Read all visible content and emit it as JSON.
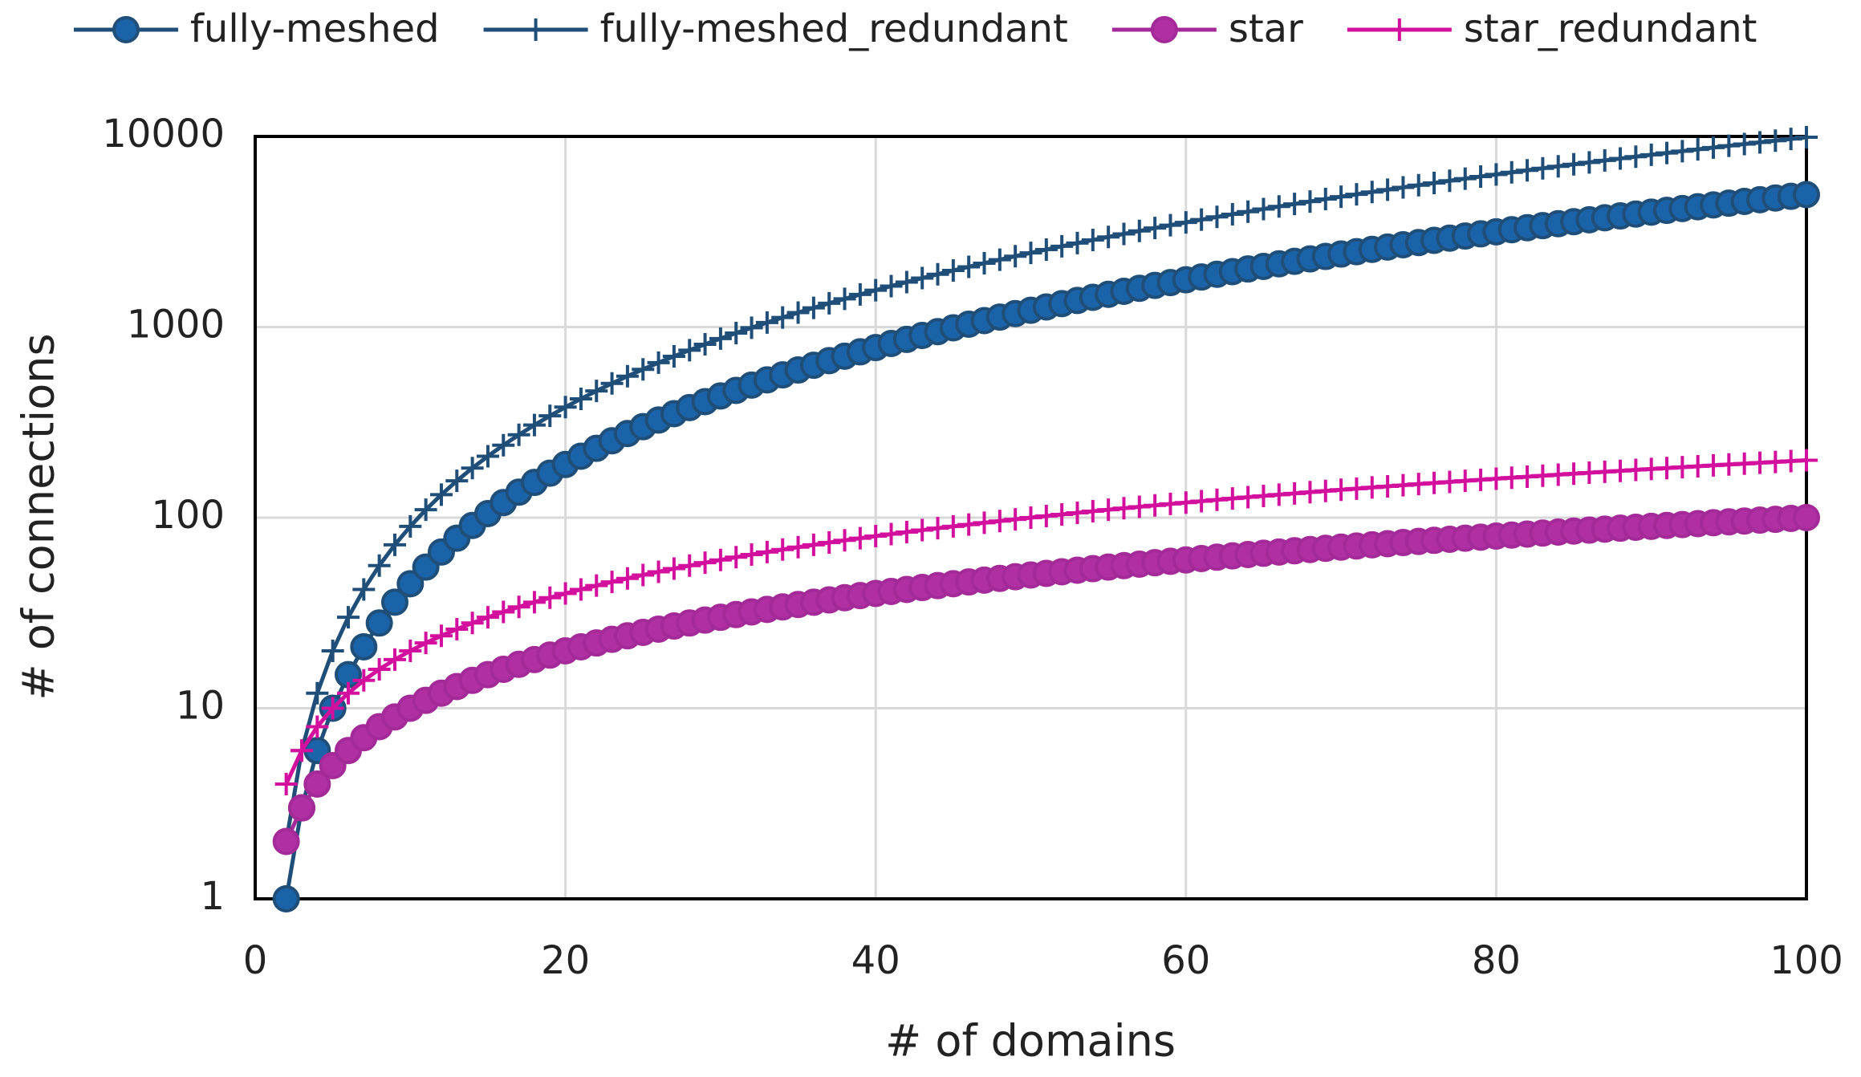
{
  "chart_data": {
    "type": "line",
    "x_label": "# of domains",
    "y_label": "# of connections",
    "xlim": [
      0,
      100
    ],
    "xticks": [
      0,
      20,
      40,
      60,
      80,
      100
    ],
    "ylim": [
      1,
      10000
    ],
    "yticks": [
      1,
      10,
      100,
      1000,
      10000
    ],
    "y_scale": "log",
    "grid": true,
    "legend": "top",
    "x": [
      2,
      3,
      4,
      5,
      6,
      7,
      8,
      9,
      10,
      11,
      12,
      13,
      14,
      15,
      16,
      17,
      18,
      19,
      20,
      21,
      22,
      23,
      24,
      25,
      26,
      27,
      28,
      29,
      30,
      31,
      32,
      33,
      34,
      35,
      36,
      37,
      38,
      39,
      40,
      41,
      42,
      43,
      44,
      45,
      46,
      47,
      48,
      49,
      50,
      51,
      52,
      53,
      54,
      55,
      56,
      57,
      58,
      59,
      60,
      61,
      62,
      63,
      64,
      65,
      66,
      67,
      68,
      69,
      70,
      71,
      72,
      73,
      74,
      75,
      76,
      77,
      78,
      79,
      80,
      81,
      82,
      83,
      84,
      85,
      86,
      87,
      88,
      89,
      90,
      91,
      92,
      93,
      94,
      95,
      96,
      97,
      98,
      99,
      100
    ],
    "series": [
      {
        "name": "fully-meshed",
        "color": "#1f4e79",
        "marker": "circle",
        "marker_fill": "#1b63a8",
        "values": [
          1,
          3,
          6,
          10,
          15,
          21,
          28,
          36,
          45,
          55,
          66,
          78,
          91,
          105,
          120,
          136,
          153,
          171,
          190,
          210,
          231,
          253,
          276,
          300,
          325,
          351,
          378,
          406,
          435,
          465,
          496,
          528,
          561,
          595,
          630,
          666,
          703,
          741,
          780,
          820,
          861,
          903,
          946,
          990,
          1035,
          1081,
          1128,
          1176,
          1225,
          1275,
          1326,
          1378,
          1431,
          1485,
          1540,
          1596,
          1653,
          1711,
          1770,
          1830,
          1891,
          1953,
          2016,
          2080,
          2145,
          2211,
          2278,
          2346,
          2415,
          2485,
          2556,
          2628,
          2701,
          2775,
          2850,
          2926,
          3003,
          3081,
          3160,
          3240,
          3321,
          3403,
          3486,
          3570,
          3655,
          3741,
          3828,
          3916,
          4005,
          4095,
          4186,
          4278,
          4371,
          4465,
          4560,
          4656,
          4753,
          4851,
          4950
        ]
      },
      {
        "name": "fully-meshed_redundant",
        "color": "#1f4e79",
        "marker": "plus",
        "values": [
          2,
          6,
          12,
          20,
          30,
          42,
          56,
          72,
          90,
          110,
          132,
          156,
          182,
          210,
          240,
          272,
          306,
          342,
          380,
          420,
          462,
          506,
          552,
          600,
          650,
          702,
          756,
          812,
          870,
          930,
          992,
          1056,
          1122,
          1190,
          1260,
          1332,
          1406,
          1482,
          1560,
          1640,
          1722,
          1806,
          1892,
          1980,
          2070,
          2162,
          2256,
          2352,
          2450,
          2550,
          2652,
          2756,
          2862,
          2970,
          3080,
          3192,
          3306,
          3422,
          3540,
          3660,
          3782,
          3906,
          4032,
          4160,
          4290,
          4422,
          4556,
          4692,
          4830,
          4970,
          5112,
          5256,
          5402,
          5550,
          5700,
          5852,
          6006,
          6162,
          6320,
          6480,
          6642,
          6806,
          6972,
          7140,
          7310,
          7482,
          7656,
          7832,
          8010,
          8190,
          8372,
          8556,
          8742,
          8930,
          9120,
          9312,
          9506,
          9702,
          9900
        ]
      },
      {
        "name": "star",
        "color": "#a32a98",
        "marker": "circle",
        "marker_fill": "#b02fa3",
        "values": [
          2,
          3,
          4,
          5,
          6,
          7,
          8,
          9,
          10,
          11,
          12,
          13,
          14,
          15,
          16,
          17,
          18,
          19,
          20,
          21,
          22,
          23,
          24,
          25,
          26,
          27,
          28,
          29,
          30,
          31,
          32,
          33,
          34,
          35,
          36,
          37,
          38,
          39,
          40,
          41,
          42,
          43,
          44,
          45,
          46,
          47,
          48,
          49,
          50,
          51,
          52,
          53,
          54,
          55,
          56,
          57,
          58,
          59,
          60,
          61,
          62,
          63,
          64,
          65,
          66,
          67,
          68,
          69,
          70,
          71,
          72,
          73,
          74,
          75,
          76,
          77,
          78,
          79,
          80,
          81,
          82,
          83,
          84,
          85,
          86,
          87,
          88,
          89,
          90,
          91,
          92,
          93,
          94,
          95,
          96,
          97,
          98,
          99,
          100
        ]
      },
      {
        "name": "star_redundant",
        "color": "#d3109e",
        "marker": "plus",
        "values": [
          4,
          6,
          8,
          10,
          12,
          14,
          16,
          18,
          20,
          22,
          24,
          26,
          28,
          30,
          32,
          34,
          36,
          38,
          40,
          42,
          44,
          46,
          48,
          50,
          52,
          54,
          56,
          58,
          60,
          62,
          64,
          66,
          68,
          70,
          72,
          74,
          76,
          78,
          80,
          82,
          84,
          86,
          88,
          90,
          92,
          94,
          96,
          98,
          100,
          102,
          104,
          106,
          108,
          110,
          112,
          114,
          116,
          118,
          120,
          122,
          124,
          126,
          128,
          130,
          132,
          134,
          136,
          138,
          140,
          142,
          144,
          146,
          148,
          150,
          152,
          154,
          156,
          158,
          160,
          162,
          164,
          166,
          168,
          170,
          172,
          174,
          176,
          178,
          180,
          182,
          184,
          186,
          188,
          190,
          192,
          194,
          196,
          198,
          200
        ]
      }
    ]
  }
}
